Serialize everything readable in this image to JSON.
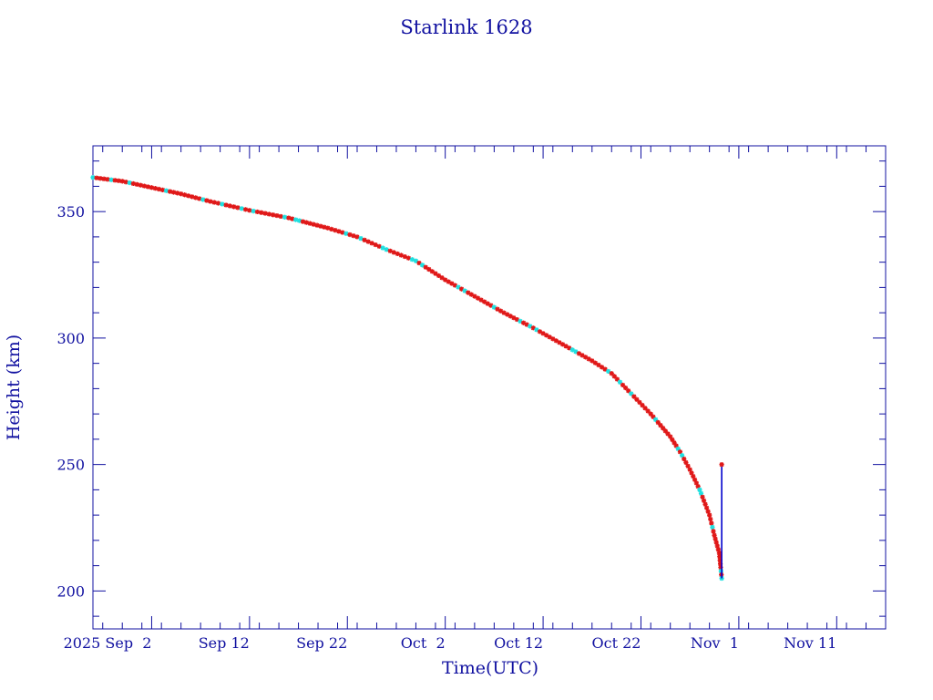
{
  "chart_data": {
    "type": "scatter",
    "title": "Starlink 1628",
    "xlabel": "Time(UTC)",
    "ylabel": "Height (km)",
    "x_range": [
      "2025-08-27",
      "2025-11-16"
    ],
    "ylim": [
      185,
      376
    ],
    "x_ticks": [
      {
        "date": "2025-09-02",
        "label": "2025 Sep  2"
      },
      {
        "date": "2025-09-12",
        "label": "Sep 12"
      },
      {
        "date": "2025-09-22",
        "label": "Sep 22"
      },
      {
        "date": "2025-10-02",
        "label": "Oct  2"
      },
      {
        "date": "2025-10-12",
        "label": "Oct 12"
      },
      {
        "date": "2025-10-22",
        "label": "Oct 22"
      },
      {
        "date": "2025-11-01",
        "label": "Nov  1"
      },
      {
        "date": "2025-11-11",
        "label": "Nov 11"
      }
    ],
    "y_ticks": [
      200,
      250,
      300,
      350
    ],
    "grid": false,
    "colors": {
      "frame": "#1010a0",
      "line": "#000000",
      "series_a": "#e01818",
      "series_b": "#20e0e0",
      "final_segment": "#0000cc"
    },
    "height_curve": [
      {
        "date": "2025-08-27",
        "km": 363.5
      },
      {
        "date": "2025-08-30",
        "km": 362
      },
      {
        "date": "2025-09-02",
        "km": 359.5
      },
      {
        "date": "2025-09-05",
        "km": 357
      },
      {
        "date": "2025-09-08",
        "km": 354
      },
      {
        "date": "2025-09-12",
        "km": 350.5
      },
      {
        "date": "2025-09-16",
        "km": 347.5
      },
      {
        "date": "2025-09-20",
        "km": 343.5
      },
      {
        "date": "2025-09-23",
        "km": 340
      },
      {
        "date": "2025-09-26",
        "km": 335
      },
      {
        "date": "2025-09-29",
        "km": 330.5
      },
      {
        "date": "2025-10-02",
        "km": 323
      },
      {
        "date": "2025-10-05",
        "km": 316.5
      },
      {
        "date": "2025-10-08",
        "km": 310
      },
      {
        "date": "2025-10-11",
        "km": 304
      },
      {
        "date": "2025-10-14",
        "km": 297.5
      },
      {
        "date": "2025-10-17",
        "km": 291
      },
      {
        "date": "2025-10-19",
        "km": 286
      },
      {
        "date": "2025-10-21",
        "km": 278
      },
      {
        "date": "2025-10-23",
        "km": 270
      },
      {
        "date": "2025-10-25",
        "km": 261
      },
      {
        "date": "2025-10-26",
        "km": 255
      },
      {
        "date": "2025-10-27",
        "km": 248
      },
      {
        "date": "2025-10-28",
        "km": 240
      },
      {
        "date": "2025-10-29",
        "km": 230
      },
      {
        "date": "2025-10-29 12:00",
        "km": 222
      },
      {
        "date": "2025-10-30",
        "km": 215
      },
      {
        "date": "2025-10-30 06:00",
        "km": 205
      }
    ],
    "final_segment": {
      "date": "2025-10-30 06:00",
      "from_km": 205,
      "to_km": 250
    }
  }
}
